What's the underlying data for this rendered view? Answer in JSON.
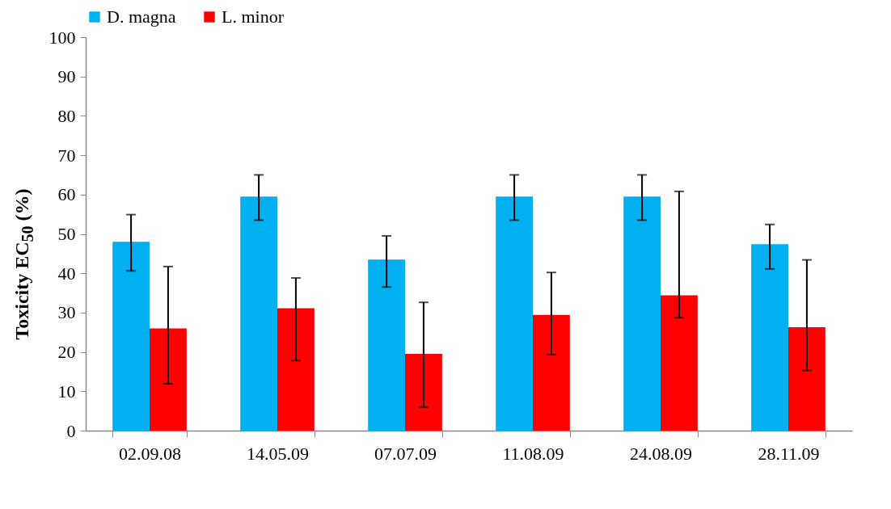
{
  "chart_data": {
    "type": "bar",
    "ylabel": "Toxicity EC$_{50}$ (%)",
    "categories": [
      "02.09.08",
      "14.05.09",
      "07.07.09",
      "11.08.09",
      "24.08.09",
      "28.11.09"
    ],
    "series": [
      {
        "name": "D. magna",
        "color": "#00b0f0",
        "values": [
          48.0,
          59.5,
          43.5,
          59.5,
          59.5,
          47.4
        ],
        "errors": [
          [
            40.6,
            54.9
          ],
          [
            53.5,
            65.0
          ],
          [
            36.5,
            49.5
          ],
          [
            53.5,
            65.0
          ],
          [
            53.5,
            65.0
          ],
          [
            41.1,
            52.4
          ]
        ]
      },
      {
        "name": "L. minor",
        "color": "#ff0000",
        "values": [
          26.0,
          31.1,
          19.5,
          29.4,
          34.4,
          26.3
        ],
        "errors": [
          [
            11.9,
            41.7
          ],
          [
            17.8,
            38.8
          ],
          [
            6.0,
            32.6
          ],
          [
            19.3,
            40.2
          ],
          [
            28.7,
            60.8
          ],
          [
            15.3,
            43.4
          ]
        ]
      }
    ],
    "ylim": [
      0,
      100
    ],
    "yticks": [
      0,
      10,
      20,
      30,
      40,
      50,
      60,
      70,
      80,
      90,
      100
    ],
    "grid": false,
    "legend": "top"
  }
}
